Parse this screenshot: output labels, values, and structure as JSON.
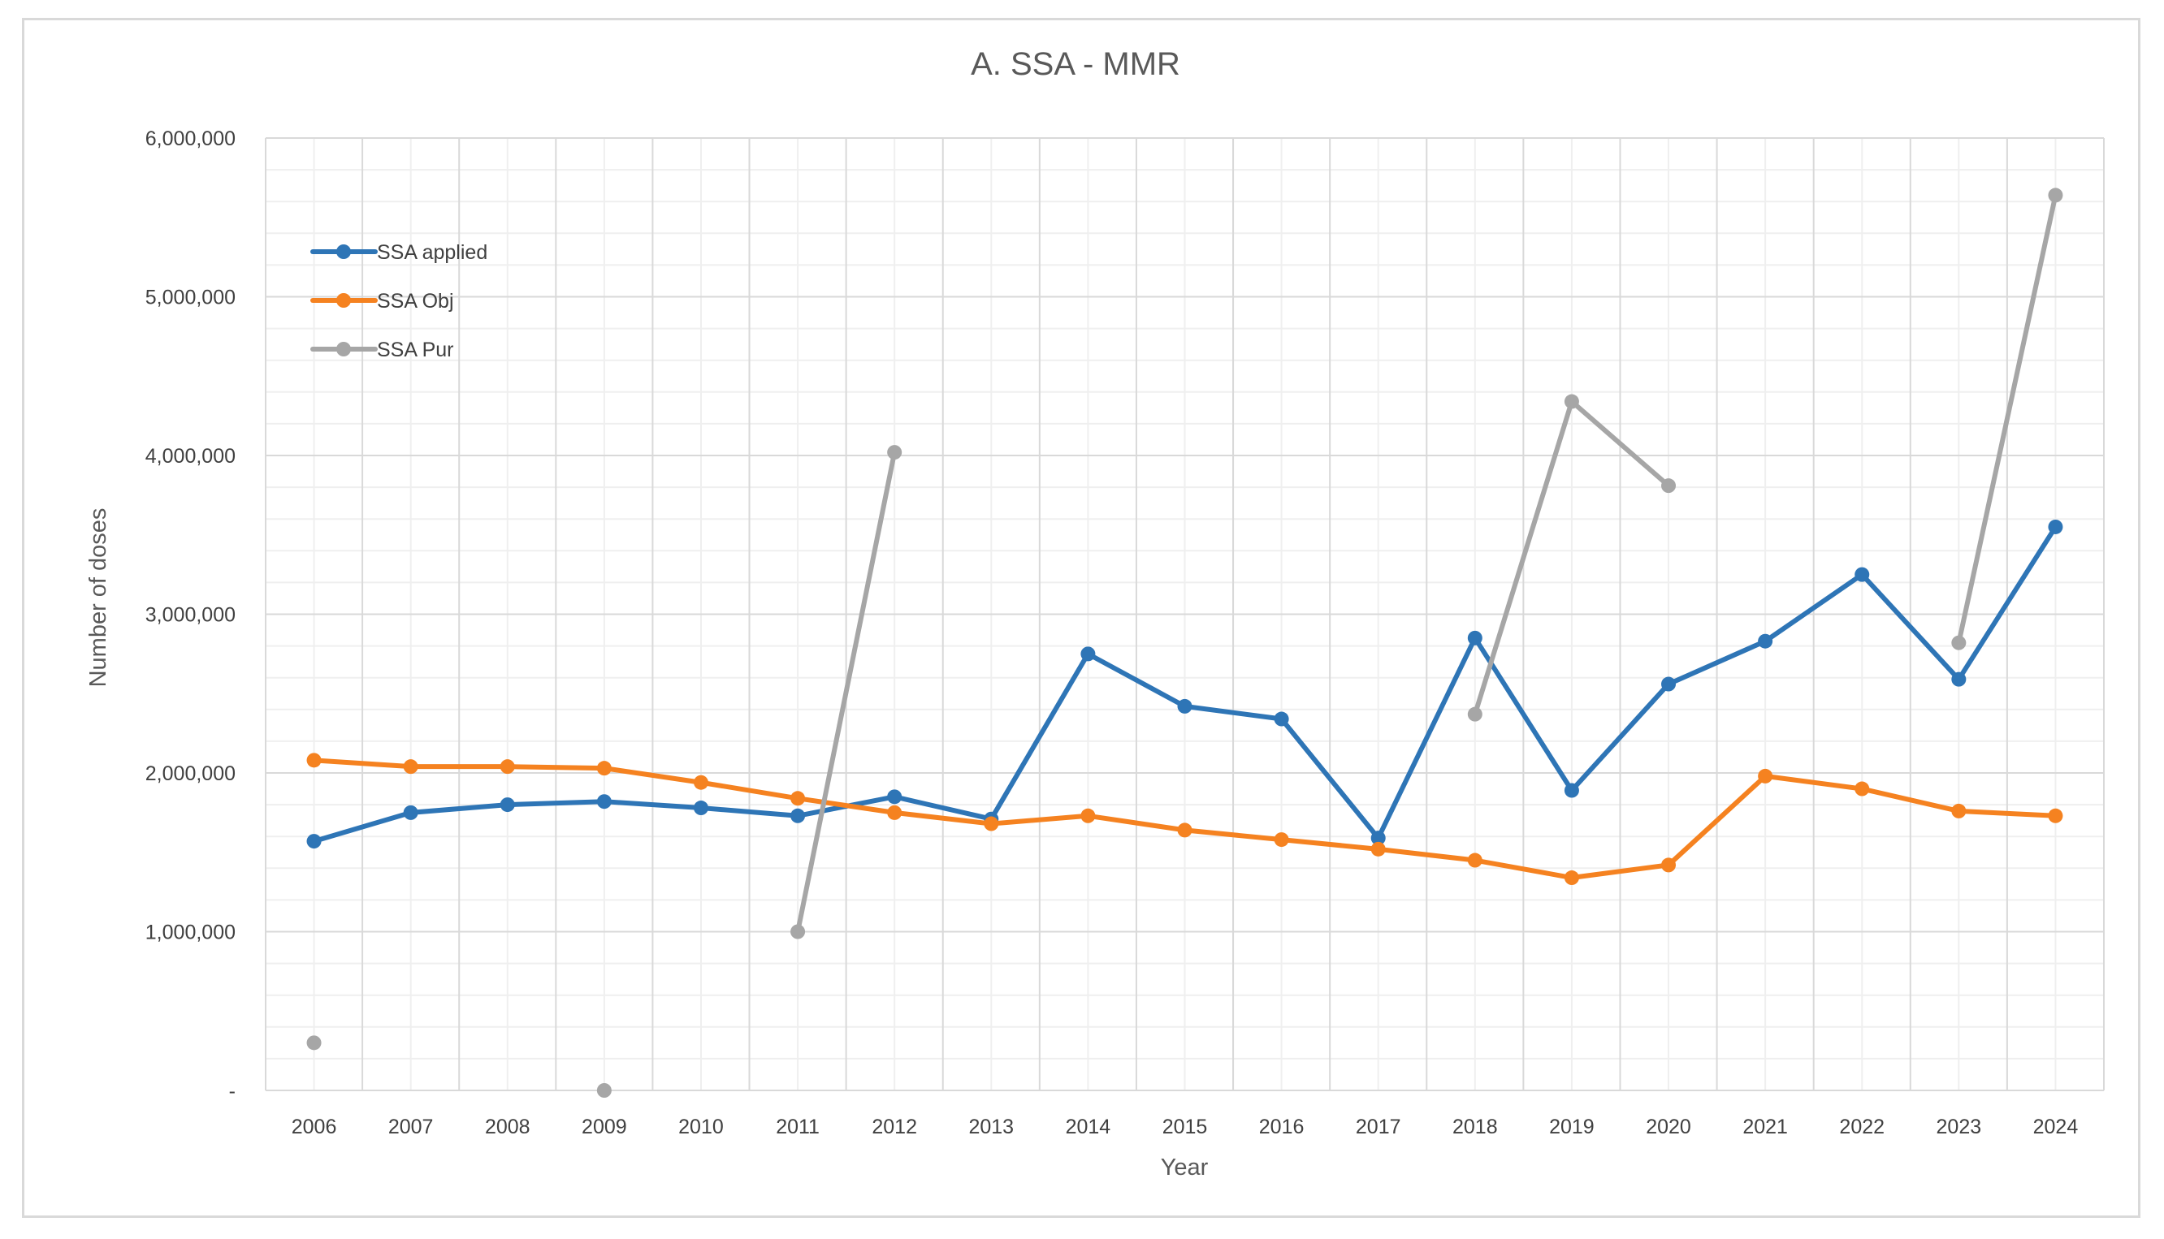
{
  "chart_data": {
    "type": "line",
    "title": "A. SSA - MMR",
    "xlabel": "Year",
    "ylabel": "Number of doses",
    "ylim": [
      0,
      6000000
    ],
    "y_ticks": [
      0,
      1000000,
      2000000,
      3000000,
      4000000,
      5000000,
      6000000
    ],
    "y_tick_labels": [
      "-",
      "1,000,000",
      "2,000,000",
      "3,000,000",
      "4,000,000",
      "5,000,000",
      "6,000,000"
    ],
    "categories": [
      "2006",
      "2007",
      "2008",
      "2009",
      "2010",
      "2011",
      "2012",
      "2013",
      "2014",
      "2015",
      "2016",
      "2017",
      "2018",
      "2019",
      "2020",
      "2021",
      "2022",
      "2023",
      "2024"
    ],
    "grid": true,
    "legend_position": "top-left",
    "series": [
      {
        "name": "SSA applied",
        "color": "#2E75B6",
        "values": [
          1570000,
          1750000,
          1800000,
          1820000,
          1780000,
          1730000,
          1850000,
          1710000,
          2750000,
          2420000,
          2340000,
          1590000,
          2850000,
          1890000,
          2560000,
          2830000,
          3250000,
          2590000,
          3550000
        ]
      },
      {
        "name": "SSA Obj",
        "color": "#F58220",
        "values": [
          2080000,
          2040000,
          2040000,
          2030000,
          1940000,
          1840000,
          1750000,
          1680000,
          1730000,
          1640000,
          1580000,
          1520000,
          1450000,
          1340000,
          1420000,
          1980000,
          1900000,
          1760000,
          1730000
        ]
      },
      {
        "name": "SSA Pur",
        "color": "#A6A6A6",
        "values": [
          300000,
          null,
          null,
          0,
          null,
          1000000,
          4020000,
          null,
          null,
          null,
          null,
          null,
          2370000,
          4340000,
          3810000,
          null,
          null,
          2820000,
          5640000
        ]
      }
    ]
  }
}
